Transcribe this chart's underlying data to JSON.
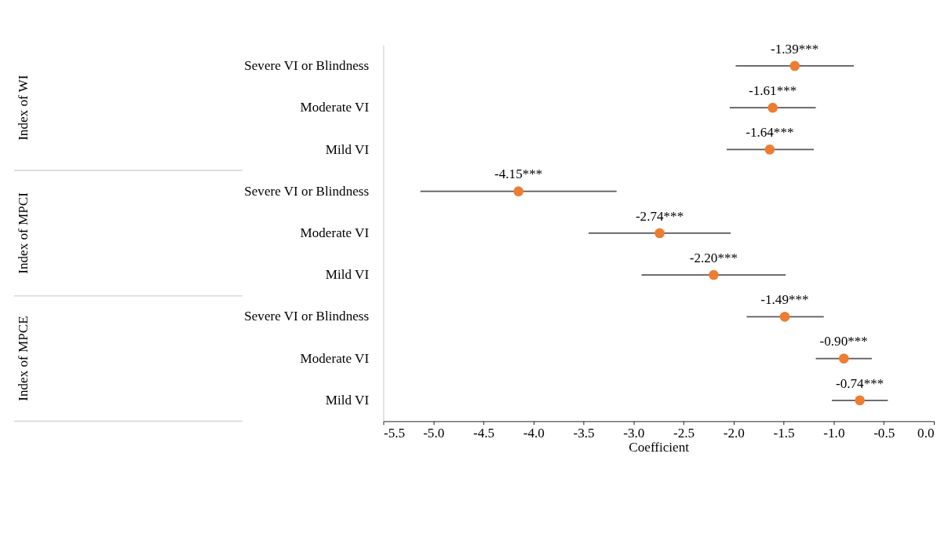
{
  "chart_data": {
    "type": "scatter",
    "orientation": "horizontal",
    "xlabel": "Coefficient",
    "categories": [
      "Severe VI or Blindness",
      "Moderate VI",
      "Mild VI",
      "Severe VI or Blindness",
      "Moderate VI",
      "Mild VI",
      "Severe VI or Blindness",
      "Moderate VI",
      "Mild VI"
    ],
    "annotations": [
      "Index of WI",
      "Index of MPCI",
      "Index of MPCE"
    ],
    "values": [
      -1.39,
      -1.61,
      -1.64,
      -4.15,
      -2.74,
      -2.2,
      -1.49,
      -0.9,
      -0.74
    ],
    "errors": [
      [
        -1.98,
        -0.8
      ],
      [
        -2.04,
        -1.18
      ],
      [
        -2.07,
        -1.2
      ],
      [
        -5.13,
        -3.17
      ],
      [
        -3.45,
        -2.03
      ],
      [
        -2.92,
        -1.48
      ],
      [
        -1.87,
        -1.1
      ],
      [
        -1.18,
        -0.62
      ],
      [
        -1.02,
        -0.46
      ]
    ],
    "value_labels": [
      "-1.39***",
      "-1.61***",
      "-1.64***",
      "-4.15***",
      "-2.74***",
      "-2.20***",
      "-1.49***",
      "-0.90***",
      "-0.74***"
    ],
    "color": "#ed7d31",
    "marker": "circle",
    "grid": false,
    "xlim": [
      -5.5,
      0.0
    ],
    "xticks": [
      {
        "value": -5.5,
        "label": "-5.5"
      },
      {
        "value": -5.0,
        "label": "-5.0"
      },
      {
        "value": -4.5,
        "label": "-4.5"
      },
      {
        "value": -4.0,
        "label": "-4.0"
      },
      {
        "value": -3.5,
        "label": "-3.5"
      },
      {
        "value": -3.0,
        "label": "-3.0"
      },
      {
        "value": -2.5,
        "label": "-2.5"
      },
      {
        "value": -2.0,
        "label": "-2.0"
      },
      {
        "value": -1.5,
        "label": "-1.5"
      },
      {
        "value": -1.0,
        "label": "-1.0"
      },
      {
        "value": -0.5,
        "label": "-0.5"
      },
      {
        "value": 0.0,
        "label": "0.0"
      }
    ]
  }
}
